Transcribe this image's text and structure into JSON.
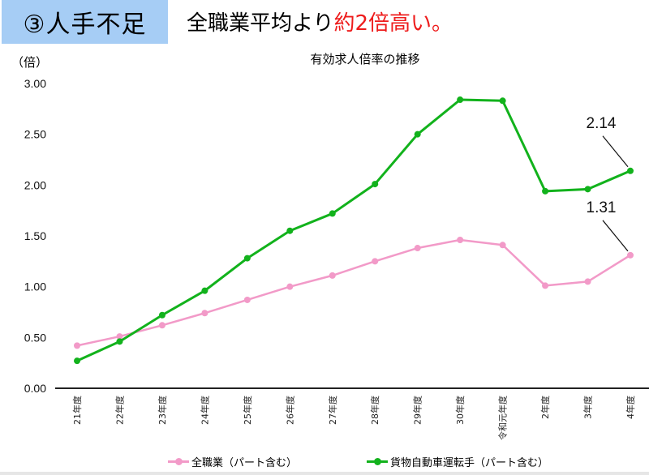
{
  "header": {
    "badge": "③人手不足",
    "headline_prefix": "全職業平均より",
    "headline_highlight": "約2倍高い。"
  },
  "colors": {
    "badge_bg": "#a6cdf5",
    "highlight": "#ee1c1c",
    "series_all": "#f29ac8",
    "series_truck": "#12b21c"
  },
  "chart_data": {
    "type": "line",
    "title": "有効求人倍率の推移",
    "ylabel": "（倍）",
    "xlabel": "",
    "ylim": [
      0,
      3
    ],
    "yticks": [
      "0.00",
      "0.50",
      "1.00",
      "1.50",
      "2.00",
      "2.50",
      "3.00"
    ],
    "grid": false,
    "legend_position": "bottom",
    "categories": [
      "21年度",
      "22年度",
      "23年度",
      "24年度",
      "25年度",
      "26年度",
      "27年度",
      "28年度",
      "29年度",
      "30年度",
      "令和元年度",
      "2年度",
      "3年度",
      "4年度"
    ],
    "series": [
      {
        "name": "全職業（パート含む）",
        "color": "#f29ac8",
        "values": [
          0.42,
          0.51,
          0.62,
          0.74,
          0.87,
          1.0,
          1.11,
          1.25,
          1.38,
          1.46,
          1.41,
          1.01,
          1.05,
          1.31
        ]
      },
      {
        "name": "貨物自動車運転手（パート含む）",
        "color": "#12b21c",
        "values": [
          0.27,
          0.46,
          0.72,
          0.96,
          1.28,
          1.55,
          1.72,
          2.01,
          2.5,
          2.84,
          2.83,
          1.94,
          1.96,
          2.14
        ]
      }
    ],
    "annotations": [
      {
        "text": "2.14",
        "series": 1,
        "index": 13
      },
      {
        "text": "1.31",
        "series": 0,
        "index": 13
      }
    ]
  }
}
